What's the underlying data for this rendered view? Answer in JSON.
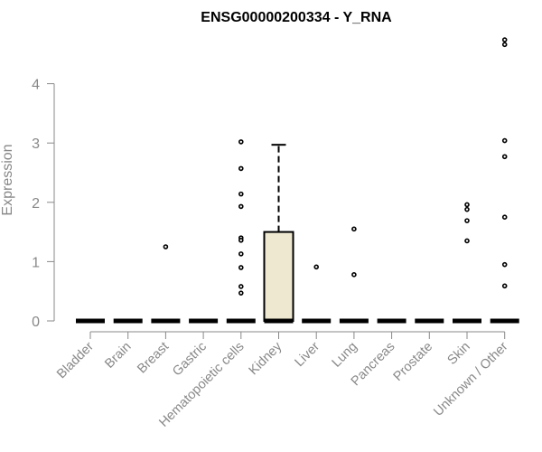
{
  "chart_data": {
    "type": "box",
    "title": "ENSG00000200334 - Y_RNA",
    "xlabel": "",
    "ylabel": "Expression",
    "ylim": [
      0,
      4.8
    ],
    "yticks": [
      "0",
      "1",
      "2",
      "3",
      "4"
    ],
    "box_fill": "#EEE8D1",
    "categories": [
      "Bladder",
      "Brain",
      "Breast",
      "Gastric",
      "Hematopoietic cells",
      "Kidney",
      "Liver",
      "Lung",
      "Pancreas",
      "Prostate",
      "Skin",
      "Unknown / Other"
    ],
    "series": [
      {
        "q1": 0,
        "median": 0,
        "q3": 0,
        "whisker_low": 0,
        "whisker_high": 0,
        "outliers": []
      },
      {
        "q1": 0,
        "median": 0,
        "q3": 0,
        "whisker_low": 0,
        "whisker_high": 0,
        "outliers": []
      },
      {
        "q1": 0,
        "median": 0,
        "q3": 0,
        "whisker_low": 0,
        "whisker_high": 0,
        "outliers": [
          1.25
        ]
      },
      {
        "q1": 0,
        "median": 0,
        "q3": 0,
        "whisker_low": 0,
        "whisker_high": 0,
        "outliers": []
      },
      {
        "q1": 0,
        "median": 0,
        "q3": 0,
        "whisker_low": 0,
        "whisker_high": 0,
        "outliers": [
          3.02,
          2.57,
          2.14,
          1.93,
          1.4,
          1.36,
          1.13,
          0.9,
          0.58,
          0.47
        ]
      },
      {
        "q1": 0,
        "median": 0,
        "q3": 1.5,
        "whisker_low": 0,
        "whisker_high": 2.97,
        "outliers": []
      },
      {
        "q1": 0,
        "median": 0,
        "q3": 0,
        "whisker_low": 0,
        "whisker_high": 0,
        "outliers": [
          0.91
        ]
      },
      {
        "q1": 0,
        "median": 0,
        "q3": 0,
        "whisker_low": 0,
        "whisker_high": 0,
        "outliers": [
          1.55,
          0.78
        ]
      },
      {
        "q1": 0,
        "median": 0,
        "q3": 0,
        "whisker_low": 0,
        "whisker_high": 0,
        "outliers": []
      },
      {
        "q1": 0,
        "median": 0,
        "q3": 0,
        "whisker_low": 0,
        "whisker_high": 0,
        "outliers": []
      },
      {
        "q1": 0,
        "median": 0,
        "q3": 0,
        "whisker_low": 0,
        "whisker_high": 0,
        "outliers": [
          1.96,
          1.88,
          1.69,
          1.35
        ]
      },
      {
        "q1": 0,
        "median": 0,
        "q3": 0,
        "whisker_low": 0,
        "whisker_high": 0,
        "outliers": [
          4.74,
          4.66,
          3.04,
          2.77,
          1.75,
          0.95,
          0.59
        ]
      }
    ]
  }
}
